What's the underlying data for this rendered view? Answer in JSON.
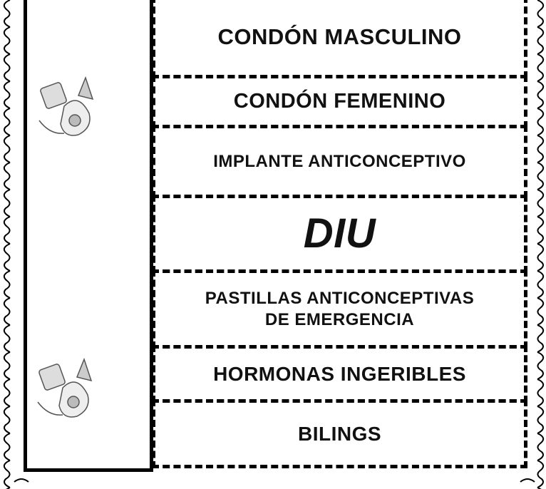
{
  "rows": [
    {
      "lines": [
        "CONDÓN MASCULINO"
      ]
    },
    {
      "lines": [
        "CONDÓN FEMENINO"
      ]
    },
    {
      "lines": [
        "IMPLANTE ANTICONCEPTIVO"
      ]
    },
    {
      "lines": [
        "DIU"
      ]
    },
    {
      "lines": [
        "PASTILLAS ANTICONCEPTIVAS",
        "DE EMERGENCIA"
      ]
    },
    {
      "lines": [
        "HORMONAS INGERIBLES"
      ]
    },
    {
      "lines": [
        "BILINGS"
      ]
    }
  ]
}
